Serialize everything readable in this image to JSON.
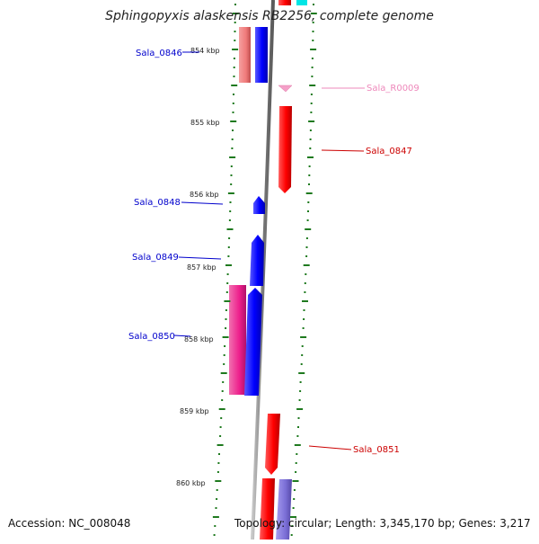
{
  "title": "Sphingopyxis alaskensis RB2256, complete genome",
  "footer": {
    "accession": "Accession: NC_008048",
    "summary": "Topology: circular; Length: 3,345,170 bp; Genes: 3,217"
  },
  "scale": {
    "ticks": [
      "854 kbp",
      "855 kbp",
      "856 kbp",
      "857 kbp",
      "858 kbp",
      "859 kbp",
      "860 kbp"
    ]
  },
  "colors": {
    "backbone": "#888888",
    "ticks": "#1f7a1f",
    "forward_gene": "#ff0000",
    "reverse_gene": "#0000ff",
    "rna": "#f4a0c8",
    "magenta_gene": "#ee1f8c",
    "salmon_gene": "#f07a7a",
    "lavender_gene": "#7b6fd6",
    "cyan_gene": "#00e5e5",
    "label_reverse": "#0000cc",
    "label_forward": "#cc0000",
    "label_rna": "#ee88bb"
  },
  "genes": [
    {
      "name": "Sala_0846",
      "strand": "reverse"
    },
    {
      "name": "Sala_R0009",
      "strand": "forward"
    },
    {
      "name": "Sala_0847",
      "strand": "forward"
    },
    {
      "name": "Sala_0848",
      "strand": "reverse"
    },
    {
      "name": "Sala_0849",
      "strand": "reverse"
    },
    {
      "name": "Sala_0850",
      "strand": "reverse"
    },
    {
      "name": "Sala_0851",
      "strand": "forward"
    }
  ]
}
